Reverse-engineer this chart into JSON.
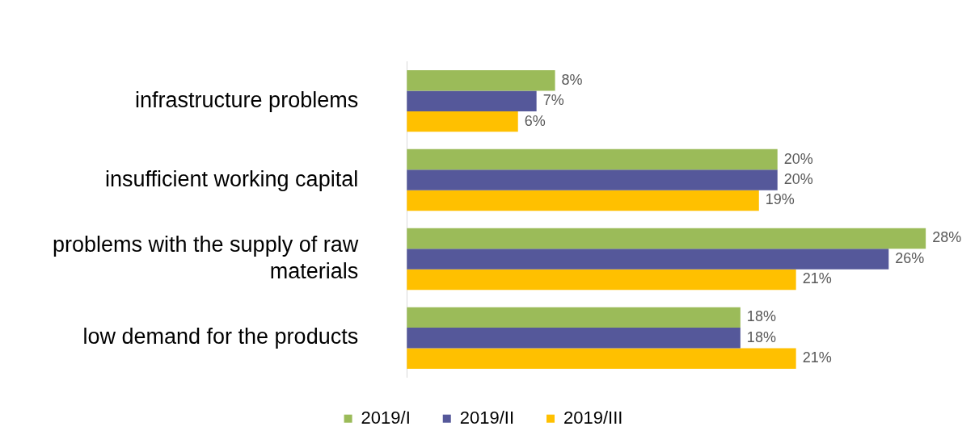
{
  "chart_data": {
    "type": "bar",
    "orientation": "horizontal",
    "categories": [
      "infrastructure problems",
      "insufficient working capital",
      "problems with the supply of raw materials",
      "low demand for the products"
    ],
    "series": [
      {
        "name": "2019/I",
        "color": "#9bbb59",
        "values": [
          8,
          20,
          28,
          18
        ],
        "value_labels": [
          "8%",
          "20%",
          "28%",
          "18%"
        ]
      },
      {
        "name": "2019/II",
        "color": "#55589a",
        "values": [
          7,
          20,
          26,
          18
        ],
        "value_labels": [
          "7%",
          "20%",
          "26%",
          "18%"
        ]
      },
      {
        "name": "2019/III",
        "color": "#ffc000",
        "values": [
          6,
          19,
          21,
          21
        ],
        "value_labels": [
          "6%",
          "19%",
          "21%",
          "21%"
        ]
      }
    ],
    "tick_labels": "y",
    "legend": "bottom"
  }
}
